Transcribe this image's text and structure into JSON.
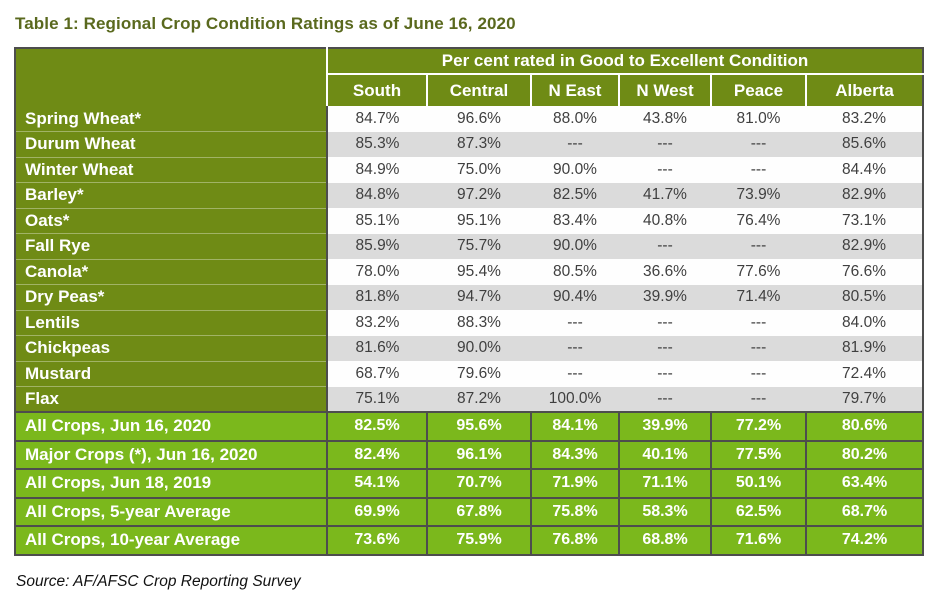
{
  "title": "Table 1: Regional Crop Condition Ratings as of June 16, 2020",
  "table": {
    "group_header": "Per cent rated in Good to Excellent Condition",
    "columns": [
      "South",
      "Central",
      "N East",
      "N West",
      "Peace",
      "Alberta"
    ],
    "crops": [
      {
        "label": "Spring Wheat*",
        "values": [
          "84.7%",
          "96.6%",
          "88.0%",
          "43.8%",
          "81.0%",
          "83.2%"
        ]
      },
      {
        "label": "Durum Wheat",
        "values": [
          "85.3%",
          "87.3%",
          "---",
          "---",
          "---",
          "85.6%"
        ]
      },
      {
        "label": "Winter Wheat",
        "values": [
          "84.9%",
          "75.0%",
          "90.0%",
          "---",
          "---",
          "84.4%"
        ]
      },
      {
        "label": "Barley*",
        "values": [
          "84.8%",
          "97.2%",
          "82.5%",
          "41.7%",
          "73.9%",
          "82.9%"
        ]
      },
      {
        "label": "Oats*",
        "values": [
          "85.1%",
          "95.1%",
          "83.4%",
          "40.8%",
          "76.4%",
          "73.1%"
        ]
      },
      {
        "label": "Fall Rye",
        "values": [
          "85.9%",
          "75.7%",
          "90.0%",
          "---",
          "---",
          "82.9%"
        ]
      },
      {
        "label": "Canola*",
        "values": [
          "78.0%",
          "95.4%",
          "80.5%",
          "36.6%",
          "77.6%",
          "76.6%"
        ]
      },
      {
        "label": "Dry Peas*",
        "values": [
          "81.8%",
          "94.7%",
          "90.4%",
          "39.9%",
          "71.4%",
          "80.5%"
        ]
      },
      {
        "label": "Lentils",
        "values": [
          "83.2%",
          "88.3%",
          "---",
          "---",
          "---",
          "84.0%"
        ]
      },
      {
        "label": "Chickpeas",
        "values": [
          "81.6%",
          "90.0%",
          "---",
          "---",
          "---",
          "81.9%"
        ]
      },
      {
        "label": "Mustard",
        "values": [
          "68.7%",
          "79.6%",
          "---",
          "---",
          "---",
          "72.4%"
        ]
      },
      {
        "label": "Flax",
        "values": [
          "75.1%",
          "87.2%",
          "100.0%",
          "---",
          "---",
          "79.7%"
        ]
      }
    ],
    "summary": [
      {
        "label": "All Crops, Jun 16, 2020",
        "values": [
          "82.5%",
          "95.6%",
          "84.1%",
          "39.9%",
          "77.2%",
          "80.6%"
        ]
      },
      {
        "label": "Major Crops (*), Jun 16, 2020",
        "values": [
          "82.4%",
          "96.1%",
          "84.3%",
          "40.1%",
          "77.5%",
          "80.2%"
        ]
      },
      {
        "label": "All Crops, Jun 18, 2019",
        "values": [
          "54.1%",
          "70.7%",
          "71.9%",
          "71.1%",
          "50.1%",
          "63.4%"
        ]
      },
      {
        "label": "All Crops, 5-year Average",
        "values": [
          "69.9%",
          "67.8%",
          "75.8%",
          "58.3%",
          "62.5%",
          "68.7%"
        ]
      },
      {
        "label": "All Crops, 10-year Average",
        "values": [
          "73.6%",
          "75.9%",
          "76.8%",
          "68.8%",
          "71.6%",
          "74.2%"
        ]
      }
    ]
  },
  "source": "Source: AF/AFSC Crop Reporting Survey",
  "colors": {
    "header_green": "#6F8B15",
    "summary_green": "#7BB81C",
    "zebra_gray": "#DBDBDB",
    "border_dark": "#4D4D4D",
    "title_green": "#5A691E",
    "data_text": "#3F3F3F"
  }
}
